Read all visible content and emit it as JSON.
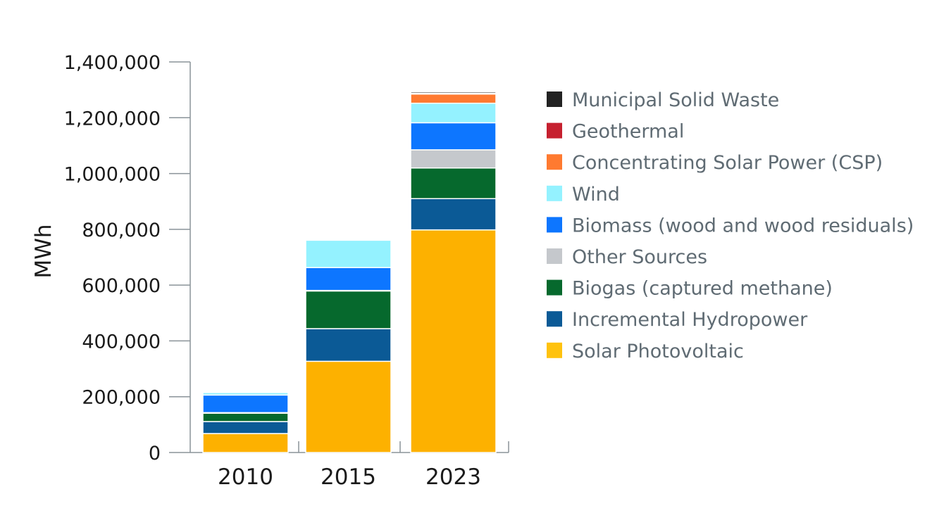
{
  "chart_data": {
    "type": "bar",
    "stacked": true,
    "title": "",
    "xlabel": "",
    "ylabel": "MWh",
    "ylim": [
      0,
      1400000
    ],
    "yticks": [
      0,
      200000,
      400000,
      600000,
      800000,
      1000000,
      1200000,
      1400000
    ],
    "ytick_labels": [
      "0",
      "200,000",
      "400,000",
      "600,000",
      "800,000",
      "1,000,000",
      "1,200,000",
      "1,400,000"
    ],
    "categories": [
      "2010",
      "2015",
      "2023"
    ],
    "legend_position": "right",
    "series": [
      {
        "name": "Solar Photovoltaic",
        "color": "#FDB100",
        "legend_color": "#FFC20E",
        "values": [
          68000,
          327000,
          798000
        ]
      },
      {
        "name": "Incremental Hydropower",
        "color": "#0B5A96",
        "legend_color": "#0B5A96",
        "values": [
          43000,
          117000,
          112000
        ]
      },
      {
        "name": "Biogas (captured methane)",
        "color": "#06692D",
        "legend_color": "#06692D",
        "values": [
          30000,
          135000,
          110000
        ]
      },
      {
        "name": "Other Sources",
        "color": "#C5C8CC",
        "legend_color": "#C5C8CC",
        "values": [
          2000,
          2000,
          65000
        ]
      },
      {
        "name": "Biomass (wood and wood residuals)",
        "color": "#0D76FF",
        "legend_color": "#0D76FF",
        "values": [
          63000,
          82000,
          97000
        ]
      },
      {
        "name": "Wind",
        "color": "#94F2FF",
        "legend_color": "#94F2FF",
        "values": [
          9000,
          98000,
          70000
        ]
      },
      {
        "name": "Concentrating Solar Power (CSP)",
        "color": "#FF7A30",
        "legend_color": "#FF7A30",
        "values": [
          0,
          0,
          33000
        ]
      },
      {
        "name": "Geothermal",
        "color": "#C6202F",
        "legend_color": "#C6202F",
        "values": [
          0,
          2000,
          3000
        ]
      },
      {
        "name": "Municipal Solid Waste",
        "color": "#222222",
        "legend_color": "#222222",
        "values": [
          2000,
          3000,
          5000
        ]
      }
    ]
  }
}
